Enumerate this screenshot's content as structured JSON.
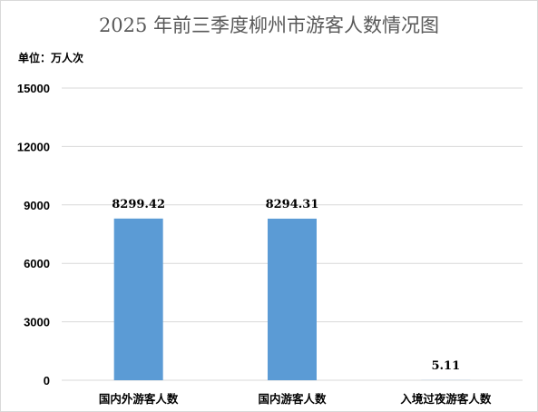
{
  "chart_data": {
    "type": "bar",
    "title": "2025 年前三季度柳州市游客人数情况图",
    "unit_label": "单位：万人次",
    "categories": [
      "国内外游客人数",
      "国内游客人数",
      "入境过夜游客人数"
    ],
    "values": [
      8299.42,
      8294.31,
      5.11
    ],
    "data_labels": [
      "8299.42",
      "8294.31",
      "5.11"
    ],
    "yticks": [
      0,
      3000,
      6000,
      9000,
      12000,
      15000
    ],
    "ylim": [
      0,
      15000
    ],
    "grid": true,
    "legend": "none",
    "bar_color": "#5b9bd5",
    "grid_color": "#d9d9d9"
  }
}
